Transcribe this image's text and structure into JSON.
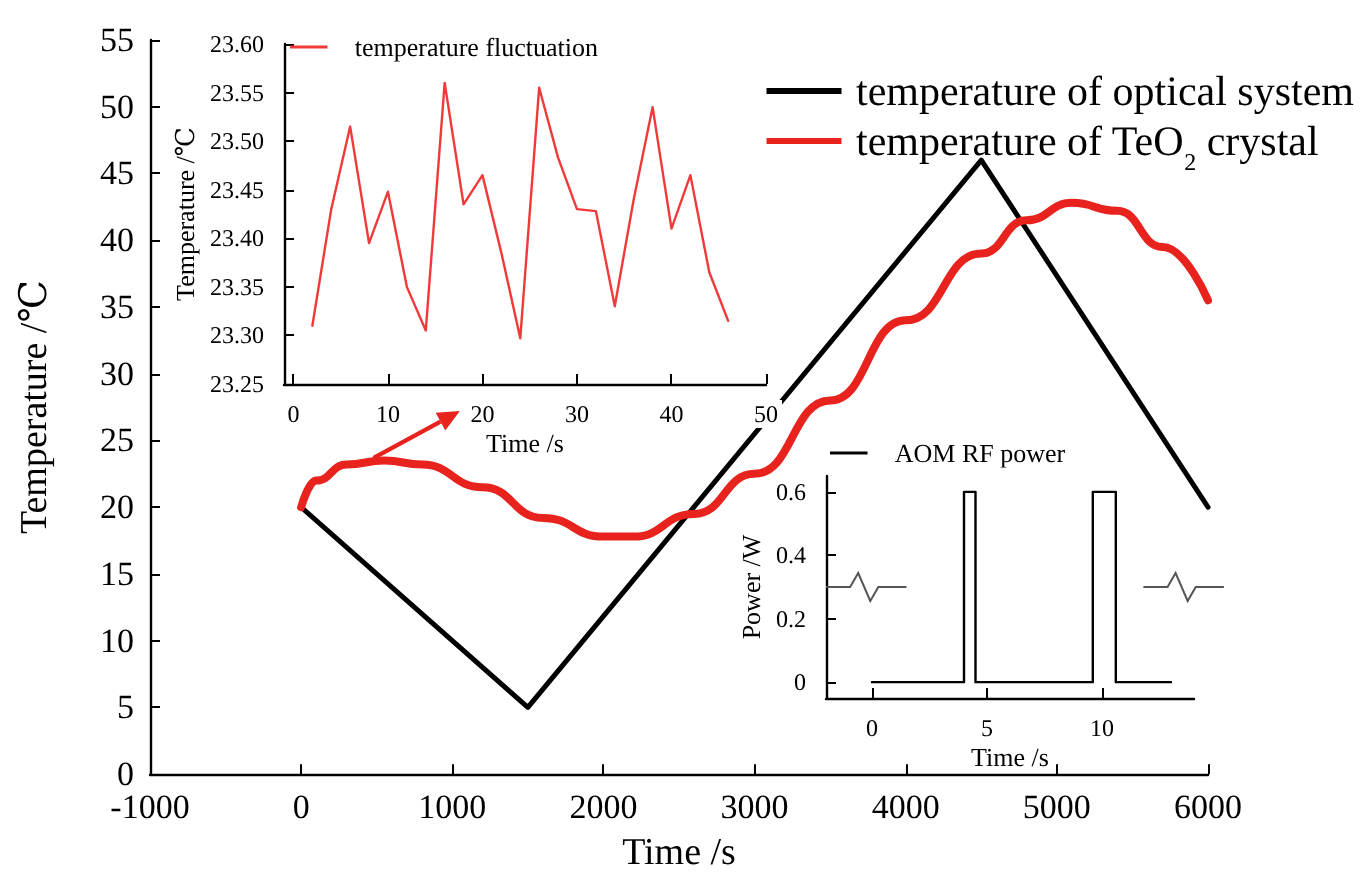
{
  "chart_data": [
    {
      "type": "line",
      "xlabel": "Time /s",
      "ylabel": "Temperature /℃",
      "xlim": [
        -1000,
        6000
      ],
      "xticks": [
        -1000,
        0,
        1000,
        2000,
        3000,
        4000,
        5000,
        6000
      ],
      "ylim": [
        0,
        55
      ],
      "yticks": [
        0,
        5,
        10,
        15,
        20,
        25,
        30,
        35,
        40,
        45,
        50,
        55
      ],
      "grid": false,
      "legend": "top right",
      "marker": "none",
      "line_style": "solid",
      "series": [
        {
          "name": "temperature of optical system",
          "color": "#000000",
          "x": [
            0,
            1500,
            4500,
            6000
          ],
          "values": [
            20,
            5,
            46,
            20
          ]
        },
        {
          "name": "temperature of TeO$_{2}$ crystal",
          "color": "#e8231d",
          "x": [
            0,
            100,
            300,
            550,
            800,
            1200,
            1600,
            2000,
            2200,
            2600,
            3000,
            3500,
            4000,
            4500,
            4800,
            5100,
            5400,
            5700,
            6000
          ],
          "values": [
            20,
            22,
            23.2,
            23.5,
            23.2,
            21.5,
            19.2,
            17.8,
            17.8,
            19.5,
            22.5,
            28,
            34,
            39,
            41.5,
            42.8,
            42.2,
            39.5,
            35.5
          ]
        }
      ]
    },
    {
      "type": "line",
      "xlabel": "Time /s",
      "ylabel": "Temperature /℃",
      "xlim": [
        -1,
        50
      ],
      "xticks": [
        0,
        10,
        20,
        30,
        40,
        50
      ],
      "ylim": [
        23.25,
        23.6
      ],
      "yticks": [
        {
          "value": 23.25,
          "label": "23.25"
        },
        {
          "value": 23.3,
          "label": "23.30"
        },
        {
          "value": 23.35,
          "label": "23.35"
        },
        {
          "value": 23.4,
          "label": "23.40"
        },
        {
          "value": 23.45,
          "label": "23.45"
        },
        {
          "value": 23.5,
          "label": "23.50"
        },
        {
          "value": 23.55,
          "label": "23.55"
        },
        {
          "value": 23.6,
          "label": "23.60"
        }
      ],
      "grid": false,
      "legend": "top left",
      "marker": "none",
      "line_style": "solid",
      "series": [
        {
          "name": "temperature fluctuation",
          "color": "#f03a3a",
          "x": [
            2,
            4,
            6,
            8,
            10,
            12,
            14,
            16,
            18,
            20,
            22,
            24,
            26,
            28,
            30,
            32,
            34,
            36,
            38,
            40,
            42,
            44,
            46
          ],
          "values": [
            23.31,
            23.43,
            23.515,
            23.395,
            23.448,
            23.35,
            23.305,
            23.56,
            23.435,
            23.465,
            23.385,
            23.297,
            23.555,
            23.483,
            23.43,
            23.428,
            23.33,
            23.44,
            23.535,
            23.41,
            23.465,
            23.365,
            23.315
          ]
        }
      ]
    },
    {
      "type": "line",
      "xlabel": "Time /s",
      "ylabel": "Power /W",
      "xlim": [
        -2,
        14
      ],
      "xticks": [
        0,
        5,
        10
      ],
      "ylim": [
        -0.05,
        0.65
      ],
      "yticks": [
        0,
        0.2,
        0.4,
        0.6
      ],
      "grid": false,
      "legend": "top",
      "marker": "none",
      "line_style": "solid",
      "series": [
        {
          "name": "AOM RF power",
          "color": "#000000",
          "x": [
            0,
            4,
            4,
            4.5,
            4.5,
            9.6,
            9.6,
            10.6,
            10.6,
            13
          ],
          "values": [
            0,
            0,
            0.6,
            0.6,
            0,
            0,
            0.6,
            0.6,
            0,
            0
          ]
        }
      ]
    }
  ]
}
